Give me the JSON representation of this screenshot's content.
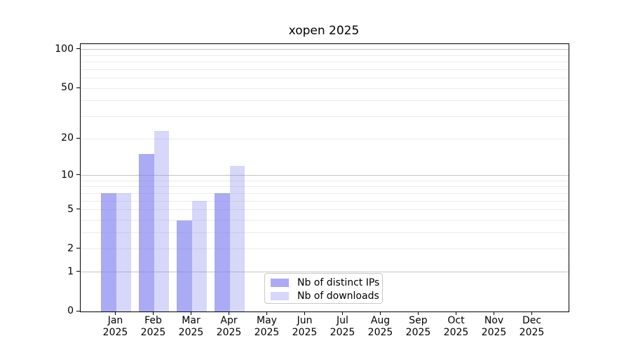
{
  "figure": {
    "title": "xopen 2025"
  },
  "chart_data": {
    "type": "bar",
    "title": "xopen 2025",
    "categories": [
      "Jan",
      "Feb",
      "Mar",
      "Apr",
      "May",
      "Jun",
      "Jul",
      "Aug",
      "Sep",
      "Oct",
      "Nov",
      "Dec"
    ],
    "category_year": "2025",
    "series": [
      {
        "name": "Nb of distinct IPs",
        "color": "rgba(124,124,240,0.65)",
        "values": [
          7,
          15,
          4,
          7,
          0,
          0,
          0,
          0,
          0,
          0,
          0,
          0
        ]
      },
      {
        "name": "Nb of downloads",
        "color": "rgba(124,124,240,0.30)",
        "values": [
          7,
          23,
          6,
          12,
          0,
          0,
          0,
          0,
          0,
          0,
          0,
          0
        ]
      }
    ],
    "xlabel": "",
    "ylabel": "",
    "yscale": "log1p",
    "ylim": [
      0,
      110
    ],
    "yticks": [
      0,
      1,
      2,
      5,
      10,
      20,
      50,
      100
    ],
    "major_gridlines": [
      1,
      10,
      100
    ],
    "minor_gridlines": [
      2,
      3,
      4,
      5,
      6,
      7,
      8,
      9,
      20,
      30,
      40,
      50,
      60,
      70,
      80,
      90
    ],
    "grid": true,
    "legend_position": "lower center inside",
    "colors": {
      "distinct_ips_rendered": "#aaaaf5",
      "downloads_rendered": "#d8d8fa",
      "major_grid": "#c6c6c6",
      "minor_grid": "#ececec",
      "spine": "#000000"
    }
  }
}
